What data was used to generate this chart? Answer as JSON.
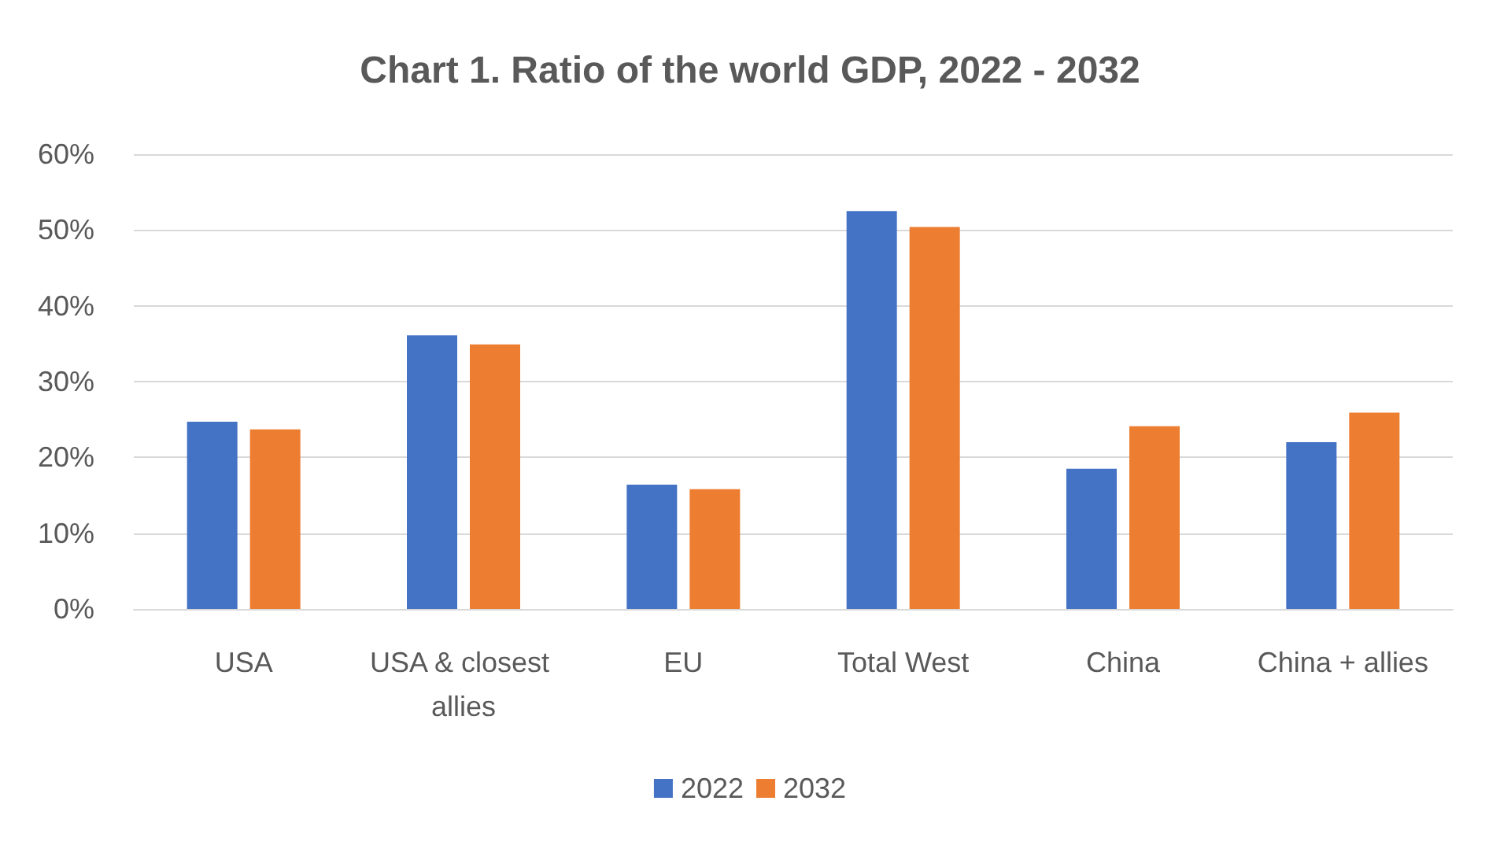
{
  "chart_data": {
    "type": "bar",
    "title": "Chart 1. Ratio of the world GDP, 2022 - 2032",
    "categories": [
      "USA",
      "USA & closest allies",
      "EU",
      "Total West",
      "China",
      "China + allies"
    ],
    "series": [
      {
        "name": "2022",
        "color": "#4472c4",
        "values": [
          24.7,
          36.1,
          16.4,
          52.5,
          18.5,
          22.0
        ]
      },
      {
        "name": "2032",
        "color": "#ed7d31",
        "values": [
          23.7,
          34.9,
          15.8,
          50.4,
          24.1,
          25.9
        ]
      }
    ],
    "ylim": [
      0,
      60
    ],
    "yticks": [
      {
        "value": 0,
        "label": "0%"
      },
      {
        "value": 10,
        "label": "10%"
      },
      {
        "value": 20,
        "label": "20%"
      },
      {
        "value": 30,
        "label": "30%"
      },
      {
        "value": 40,
        "label": "40%"
      },
      {
        "value": 50,
        "label": "50%"
      },
      {
        "value": 60,
        "label": "60%"
      }
    ],
    "grid": "y",
    "legend": "bottom"
  }
}
